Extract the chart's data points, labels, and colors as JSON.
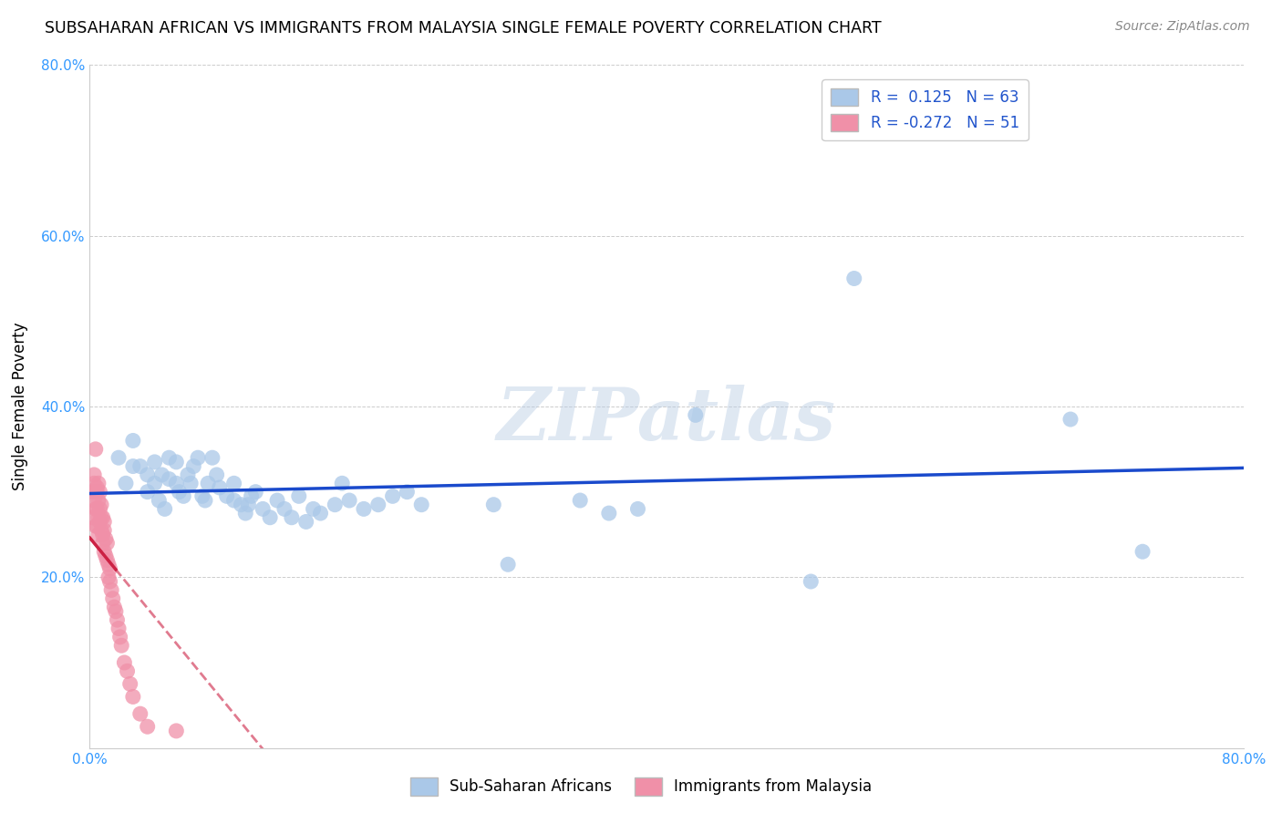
{
  "title": "SUBSAHARAN AFRICAN VS IMMIGRANTS FROM MALAYSIA SINGLE FEMALE POVERTY CORRELATION CHART",
  "source": "Source: ZipAtlas.com",
  "ylabel": "Single Female Poverty",
  "R_blue": 0.125,
  "N_blue": 63,
  "R_pink": -0.272,
  "N_pink": 51,
  "blue_color": "#aac8e8",
  "pink_color": "#f090a8",
  "blue_line_color": "#1a4acc",
  "pink_line_color": "#cc2244",
  "watermark": "ZIPatlas",
  "blue_scatter_x": [
    0.02,
    0.025,
    0.03,
    0.03,
    0.035,
    0.04,
    0.04,
    0.045,
    0.045,
    0.048,
    0.05,
    0.052,
    0.055,
    0.055,
    0.06,
    0.06,
    0.062,
    0.065,
    0.068,
    0.07,
    0.072,
    0.075,
    0.078,
    0.08,
    0.082,
    0.085,
    0.088,
    0.09,
    0.095,
    0.1,
    0.1,
    0.105,
    0.108,
    0.11,
    0.112,
    0.115,
    0.12,
    0.125,
    0.13,
    0.135,
    0.14,
    0.145,
    0.15,
    0.155,
    0.16,
    0.17,
    0.175,
    0.18,
    0.19,
    0.2,
    0.21,
    0.22,
    0.23,
    0.28,
    0.29,
    0.34,
    0.36,
    0.38,
    0.42,
    0.5,
    0.53,
    0.68,
    0.73
  ],
  "blue_scatter_y": [
    0.34,
    0.31,
    0.33,
    0.36,
    0.33,
    0.3,
    0.32,
    0.31,
    0.335,
    0.29,
    0.32,
    0.28,
    0.315,
    0.34,
    0.335,
    0.31,
    0.3,
    0.295,
    0.32,
    0.31,
    0.33,
    0.34,
    0.295,
    0.29,
    0.31,
    0.34,
    0.32,
    0.305,
    0.295,
    0.31,
    0.29,
    0.285,
    0.275,
    0.285,
    0.295,
    0.3,
    0.28,
    0.27,
    0.29,
    0.28,
    0.27,
    0.295,
    0.265,
    0.28,
    0.275,
    0.285,
    0.31,
    0.29,
    0.28,
    0.285,
    0.295,
    0.3,
    0.285,
    0.285,
    0.215,
    0.29,
    0.275,
    0.28,
    0.39,
    0.195,
    0.55,
    0.385,
    0.23
  ],
  "pink_scatter_x": [
    0.002,
    0.002,
    0.003,
    0.003,
    0.003,
    0.004,
    0.004,
    0.004,
    0.005,
    0.005,
    0.005,
    0.005,
    0.006,
    0.006,
    0.006,
    0.006,
    0.007,
    0.007,
    0.007,
    0.008,
    0.008,
    0.008,
    0.009,
    0.009,
    0.009,
    0.01,
    0.01,
    0.01,
    0.011,
    0.011,
    0.012,
    0.012,
    0.013,
    0.013,
    0.014,
    0.014,
    0.015,
    0.016,
    0.017,
    0.018,
    0.019,
    0.02,
    0.021,
    0.022,
    0.024,
    0.026,
    0.028,
    0.03,
    0.035,
    0.04,
    0.06
  ],
  "pink_scatter_y": [
    0.3,
    0.27,
    0.31,
    0.29,
    0.32,
    0.35,
    0.28,
    0.26,
    0.3,
    0.28,
    0.26,
    0.305,
    0.29,
    0.27,
    0.31,
    0.25,
    0.28,
    0.3,
    0.265,
    0.27,
    0.255,
    0.285,
    0.25,
    0.24,
    0.27,
    0.255,
    0.23,
    0.265,
    0.225,
    0.245,
    0.22,
    0.24,
    0.2,
    0.215,
    0.195,
    0.21,
    0.185,
    0.175,
    0.165,
    0.16,
    0.15,
    0.14,
    0.13,
    0.12,
    0.1,
    0.09,
    0.075,
    0.06,
    0.04,
    0.025,
    0.02
  ]
}
